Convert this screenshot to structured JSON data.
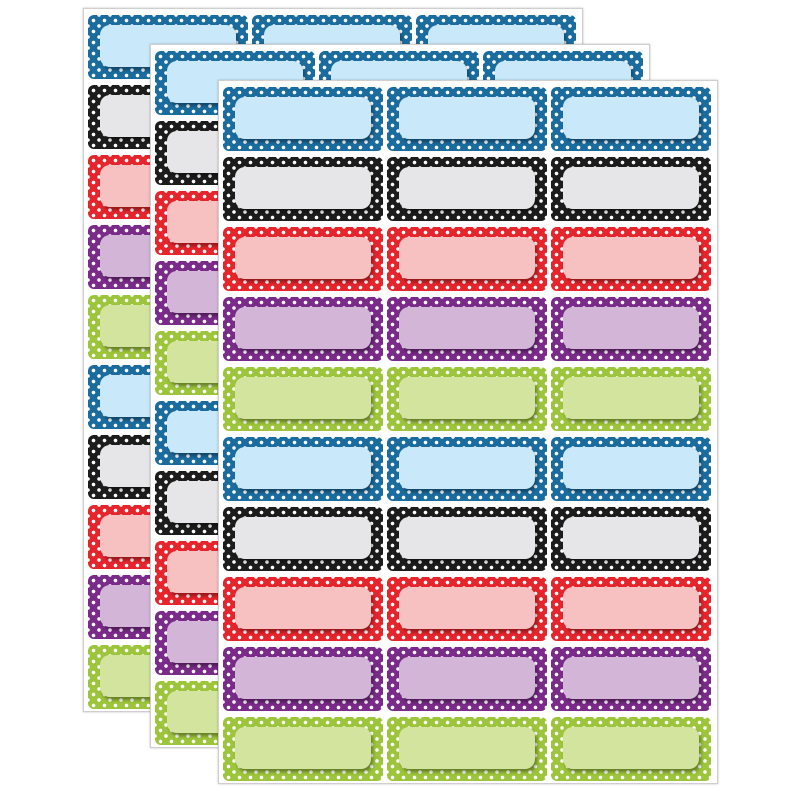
{
  "product": {
    "sheet_count": 3,
    "columns": 3,
    "color_rows": [
      "blue",
      "black",
      "red",
      "purple",
      "green",
      "blue",
      "black",
      "red",
      "purple",
      "green"
    ],
    "colors": {
      "blue": {
        "border": "#1b6c9e",
        "fill": "#c9e9fa"
      },
      "black": {
        "border": "#1c1c1c",
        "fill": "#e6e6e8"
      },
      "red": {
        "border": "#e5242b",
        "fill": "#f7c1c1"
      },
      "purple": {
        "border": "#7a2a88",
        "fill": "#d3b5d8"
      },
      "green": {
        "border": "#9dc53b",
        "fill": "#d3e49f"
      }
    },
    "dot_color": "#ffffff"
  }
}
